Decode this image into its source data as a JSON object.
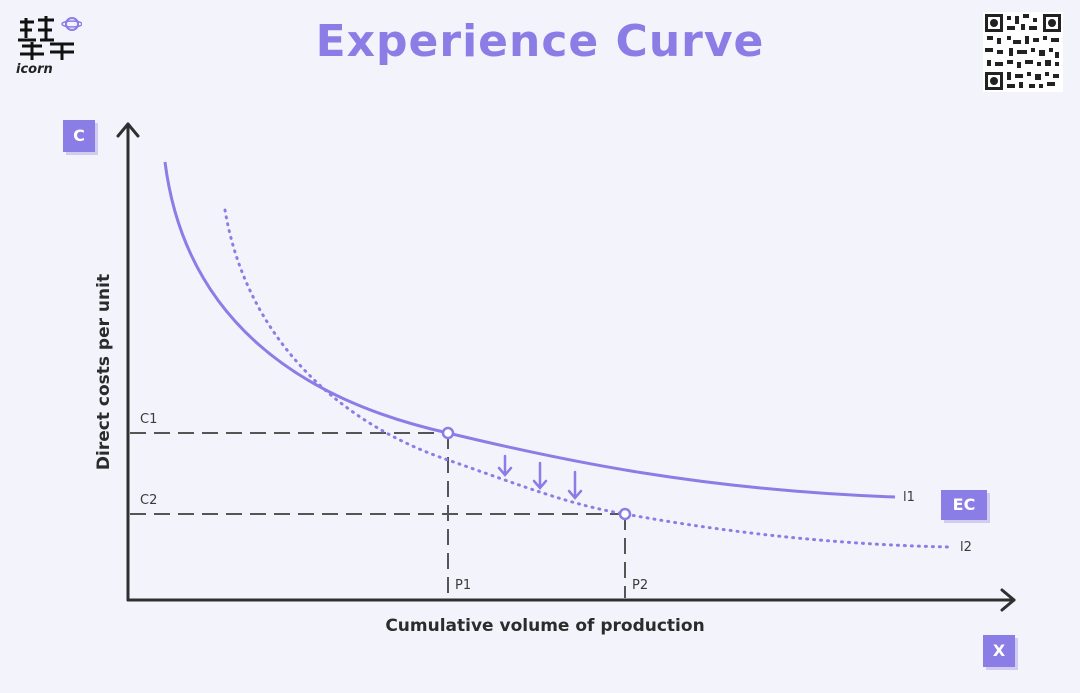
{
  "title": "Experience Curve",
  "logo": {
    "brand_text": "icorn"
  },
  "axes": {
    "y_badge": "C",
    "x_badge": "X",
    "y_label": "Direct costs per unit",
    "x_label": "Cumulative volume of production"
  },
  "curves": {
    "badge": "EC",
    "l1_label": "l1",
    "l2_label": "l2"
  },
  "markers": {
    "c1": "C1",
    "c2": "C2",
    "p1": "P1",
    "p2": "P2"
  },
  "colors": {
    "accent": "#8a7de6",
    "background": "#f3f4fb",
    "axis": "#2f2f2f",
    "guide": "#555555"
  }
}
